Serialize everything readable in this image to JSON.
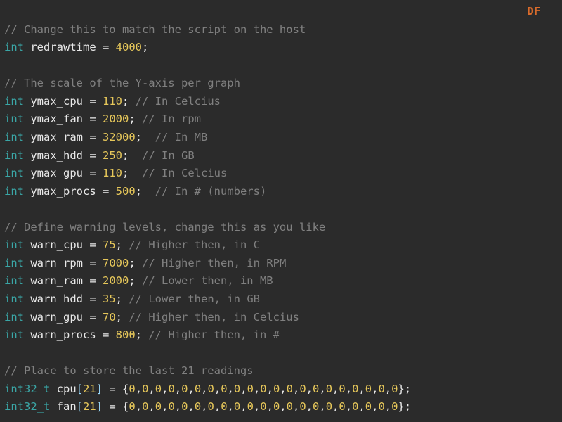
{
  "badge": "DF",
  "colors": {
    "background": "#2b2b2b",
    "comment": "#808080",
    "type": "#3aa6a6",
    "identifier": "#e8e8e8",
    "operator": "#e8e8e8",
    "number": "#e6c75a",
    "bracket": "#9cdcfe",
    "badge": "#d96b2b"
  },
  "font": {
    "family": "monospace",
    "size_pt": 12,
    "line_height": 1.65
  },
  "code_lines": [
    {
      "type": "blank"
    },
    {
      "type": "comment",
      "text": "// Change this to match the script on the host"
    },
    {
      "type": "decl",
      "ctype": "int",
      "name": "redrawtime",
      "value": "4000",
      "trailing": ""
    },
    {
      "type": "blank"
    },
    {
      "type": "comment",
      "text": "// The scale of the Y-axis per graph"
    },
    {
      "type": "decl",
      "ctype": "int",
      "name": "ymax_cpu",
      "value": "110",
      "trailing": " // In Celcius"
    },
    {
      "type": "decl",
      "ctype": "int",
      "name": "ymax_fan",
      "value": "2000",
      "trailing": " // In rpm"
    },
    {
      "type": "decl",
      "ctype": "int",
      "name": "ymax_ram",
      "value": "32000",
      "trailing": "  // In MB"
    },
    {
      "type": "decl",
      "ctype": "int",
      "name": "ymax_hdd",
      "value": "250",
      "trailing": "  // In GB"
    },
    {
      "type": "decl",
      "ctype": "int",
      "name": "ymax_gpu",
      "value": "110",
      "trailing": "  // In Celcius"
    },
    {
      "type": "decl",
      "ctype": "int",
      "name": "ymax_procs",
      "value": "500",
      "trailing": "  // In # (numbers)"
    },
    {
      "type": "blank"
    },
    {
      "type": "comment",
      "text": "// Define warning levels, change this as you like"
    },
    {
      "type": "decl",
      "ctype": "int",
      "name": "warn_cpu",
      "value": "75",
      "trailing": " // Higher then, in C"
    },
    {
      "type": "decl",
      "ctype": "int",
      "name": "warn_rpm",
      "value": "7000",
      "trailing": " // Higher then, in RPM"
    },
    {
      "type": "decl",
      "ctype": "int",
      "name": "warn_ram",
      "value": "2000",
      "trailing": " // Lower then, in MB"
    },
    {
      "type": "decl",
      "ctype": "int",
      "name": "warn_hdd",
      "value": "35",
      "trailing": " // Lower then, in GB"
    },
    {
      "type": "decl",
      "ctype": "int",
      "name": "warn_gpu",
      "value": "70",
      "trailing": " // Higher then, in Celcius"
    },
    {
      "type": "decl",
      "ctype": "int",
      "name": "warn_procs",
      "value": "800",
      "trailing": " // Higher then, in #"
    },
    {
      "type": "blank"
    },
    {
      "type": "comment",
      "text": "// Place to store the last 21 readings"
    },
    {
      "type": "arraydecl",
      "ctype": "int32_t",
      "name": "cpu",
      "size": "21",
      "values": [
        "0",
        "0",
        "0",
        "0",
        "0",
        "0",
        "0",
        "0",
        "0",
        "0",
        "0",
        "0",
        "0",
        "0",
        "0",
        "0",
        "0",
        "0",
        "0",
        "0",
        "0"
      ]
    },
    {
      "type": "arraydecl",
      "ctype": "int32_t",
      "name": "fan",
      "size": "21",
      "values": [
        "0",
        "0",
        "0",
        "0",
        "0",
        "0",
        "0",
        "0",
        "0",
        "0",
        "0",
        "0",
        "0",
        "0",
        "0",
        "0",
        "0",
        "0",
        "0",
        "0",
        "0"
      ]
    }
  ]
}
